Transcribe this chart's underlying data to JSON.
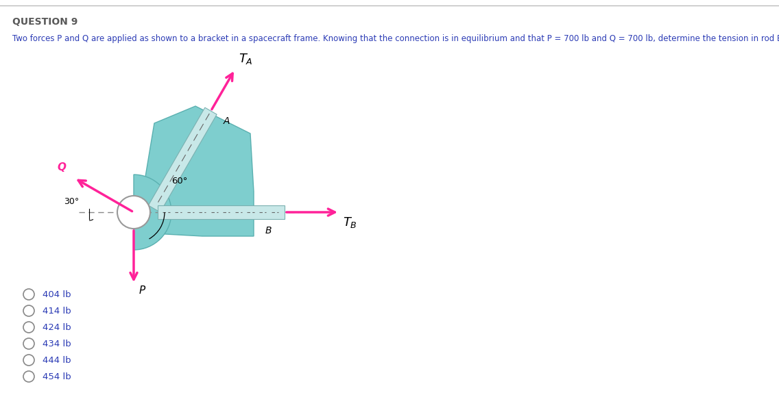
{
  "title": "QUESTION 9",
  "question_text": "Two forces P and Q are applied as shown to a bracket in a spacecraft frame. Knowing that the connection is in equilibrium and that P = 700 lb and Q = 700 lb, determine the tension in rod B.",
  "choices": [
    "404 lb",
    "414 lb",
    "424 lb",
    "434 lb",
    "444 lb",
    "454 lb"
  ],
  "bg_color": "#ffffff",
  "title_color": "#5a5a5a",
  "text_color": "#2b3bb5",
  "arrow_color": "#ff2299",
  "bracket_color": "#7ecece",
  "bracket_edge": "#5ab0b0",
  "rod_face": "#c8e8e8",
  "rod_edge": "#7ab0b0",
  "pivot_face": "#ffffff",
  "pivot_edge": "#999999",
  "dashed_color": "#888888",
  "choice_color": "#2b3bb5"
}
